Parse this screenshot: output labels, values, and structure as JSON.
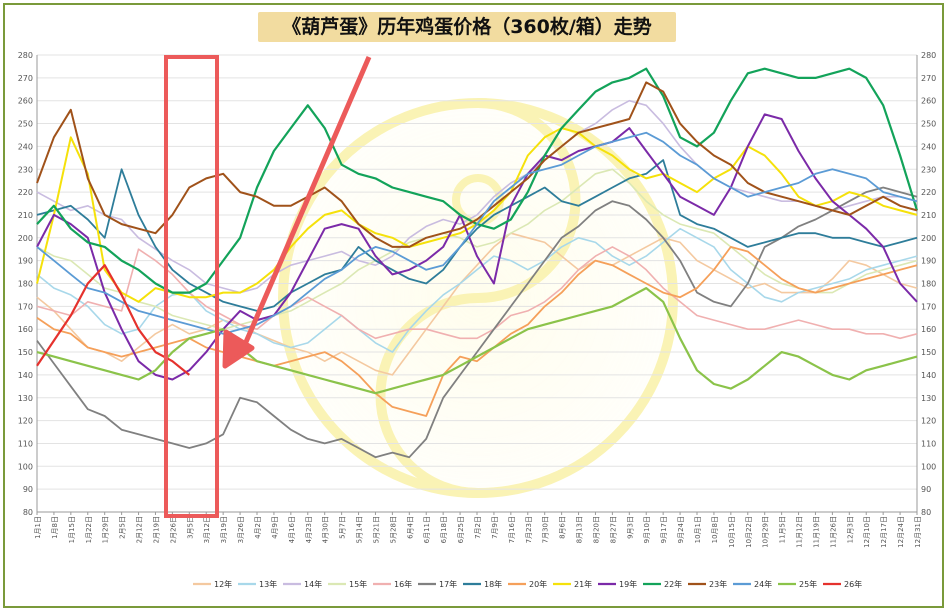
{
  "chart_data": {
    "type": "line",
    "title": "《葫芦蛋》历年鸡蛋价格（360枚/箱）走势",
    "ylim": [
      80,
      280
    ],
    "y_ticks": [
      80,
      90,
      100,
      110,
      120,
      130,
      140,
      150,
      160,
      170,
      180,
      190,
      200,
      210,
      220,
      230,
      240,
      250,
      260,
      270,
      280
    ],
    "x_labels": [
      "1月1日",
      "1月8日",
      "1月15日",
      "1月22日",
      "1月29日",
      "2月5日",
      "2月12日",
      "2月19日",
      "2月26日",
      "3月5日",
      "3月12日",
      "3月19日",
      "3月26日",
      "4月2日",
      "4月9日",
      "4月16日",
      "4月23日",
      "4月30日",
      "5月7日",
      "5月14日",
      "5月21日",
      "5月28日",
      "6月4日",
      "6月11日",
      "6月18日",
      "6月25日",
      "7月2日",
      "7月9日",
      "7月16日",
      "7月23日",
      "7月30日",
      "8月6日",
      "8月13日",
      "8月20日",
      "8月27日",
      "9月3日",
      "9月10日",
      "9月17日",
      "9月24日",
      "10月1日",
      "10月8日",
      "10月15日",
      "10月22日",
      "10月29日",
      "11月5日",
      "11月12日",
      "11月19日",
      "11月26日",
      "12月3日",
      "12月10日",
      "12月17日",
      "12月24日",
      "12月31日"
    ],
    "grid": true,
    "legend_position": "bottom",
    "annotations": [
      "red-box-highlight-late-feb-to-mid-mar",
      "red-arrow-pointing-to-highlight"
    ],
    "series": [
      {
        "name": "12年",
        "color": "#f4c9a0",
        "width": 1.6,
        "values": [
          174,
          168,
          160,
          152,
          150,
          146,
          152,
          158,
          162,
          158,
          160,
          164,
          162,
          158,
          155,
          152,
          150,
          146,
          150,
          146,
          142,
          140,
          150,
          160,
          170,
          180,
          188,
          196,
          202,
          200,
          198,
          192,
          186,
          190,
          188,
          192,
          196,
          200,
          198,
          190,
          186,
          182,
          178,
          180,
          176,
          176,
          176,
          182,
          190,
          188,
          184,
          180,
          178
        ]
      },
      {
        "name": "13年",
        "color": "#a8d8ea",
        "width": 1.6,
        "values": [
          184,
          178,
          175,
          170,
          162,
          158,
          160,
          170,
          175,
          176,
          168,
          164,
          160,
          158,
          154,
          152,
          154,
          160,
          166,
          160,
          154,
          150,
          160,
          168,
          175,
          180,
          186,
          192,
          190,
          186,
          190,
          196,
          200,
          198,
          192,
          188,
          192,
          198,
          204,
          200,
          196,
          186,
          180,
          174,
          172,
          176,
          178,
          180,
          182,
          186,
          188,
          190,
          192
        ]
      },
      {
        "name": "14年",
        "color": "#c9bce0",
        "width": 1.6,
        "values": [
          220,
          216,
          212,
          214,
          210,
          208,
          200,
          195,
          190,
          186,
          180,
          178,
          176,
          178,
          184,
          188,
          190,
          192,
          194,
          190,
          188,
          192,
          200,
          205,
          208,
          206,
          210,
          218,
          224,
          228,
          234,
          240,
          246,
          250,
          256,
          260,
          258,
          250,
          240,
          232,
          226,
          222,
          220,
          218,
          216,
          216,
          214,
          212,
          214,
          216,
          218,
          218,
          216
        ]
      },
      {
        "name": "15年",
        "color": "#dbe8b4",
        "width": 1.6,
        "values": [
          196,
          192,
          190,
          184,
          178,
          176,
          172,
          170,
          166,
          164,
          162,
          160,
          162,
          164,
          166,
          168,
          172,
          176,
          180,
          186,
          190,
          194,
          198,
          200,
          202,
          200,
          196,
          198,
          202,
          206,
          212,
          216,
          222,
          228,
          230,
          224,
          216,
          210,
          206,
          204,
          202,
          196,
          190,
          184,
          180,
          178,
          176,
          176,
          180,
          184,
          186,
          188,
          190
        ]
      },
      {
        "name": "16年",
        "color": "#f0b0b0",
        "width": 1.6,
        "values": [
          170,
          168,
          166,
          172,
          170,
          168,
          195,
          190,
          184,
          176,
          170,
          166,
          162,
          160,
          166,
          170,
          174,
          170,
          166,
          160,
          156,
          158,
          160,
          160,
          158,
          156,
          156,
          160,
          166,
          168,
          172,
          178,
          186,
          192,
          196,
          192,
          186,
          178,
          172,
          166,
          164,
          162,
          160,
          160,
          162,
          164,
          162,
          160,
          160,
          158,
          158,
          156,
          158
        ]
      },
      {
        "name": "17年",
        "color": "#808080",
        "width": 1.8,
        "values": [
          155,
          145,
          135,
          125,
          122,
          116,
          114,
          112,
          110,
          108,
          110,
          114,
          130,
          128,
          122,
          116,
          112,
          110,
          112,
          108,
          104,
          106,
          104,
          112,
          130,
          140,
          150,
          160,
          170,
          180,
          190,
          200,
          205,
          212,
          216,
          214,
          208,
          200,
          190,
          176,
          172,
          170,
          180,
          196,
          200,
          205,
          208,
          212,
          216,
          220,
          222,
          220,
          218
        ]
      },
      {
        "name": "18年",
        "color": "#2e7d9a",
        "width": 1.8,
        "values": [
          210,
          212,
          214,
          208,
          200,
          230,
          210,
          196,
          186,
          180,
          176,
          172,
          170,
          168,
          170,
          176,
          180,
          184,
          186,
          196,
          190,
          186,
          182,
          180,
          186,
          196,
          204,
          210,
          214,
          218,
          222,
          216,
          214,
          218,
          222,
          226,
          228,
          234,
          210,
          206,
          204,
          200,
          196,
          198,
          200,
          202,
          202,
          200,
          200,
          198,
          196,
          198,
          200
        ]
      },
      {
        "name": "20年",
        "color": "#f5a05a",
        "width": 1.8,
        "values": [
          165,
          160,
          158,
          152,
          150,
          148,
          150,
          152,
          154,
          156,
          152,
          150,
          148,
          146,
          144,
          146,
          148,
          150,
          146,
          140,
          132,
          126,
          124,
          122,
          140,
          148,
          146,
          152,
          158,
          162,
          170,
          176,
          184,
          190,
          188,
          184,
          180,
          176,
          174,
          178,
          186,
          196,
          194,
          188,
          182,
          178,
          176,
          178,
          180,
          182,
          184,
          186,
          188
        ]
      },
      {
        "name": "21年",
        "color": "#f5e10a",
        "width": 2.0,
        "values": [
          180,
          210,
          244,
          228,
          186,
          176,
          172,
          178,
          176,
          174,
          174,
          176,
          176,
          180,
          186,
          196,
          204,
          210,
          212,
          206,
          202,
          200,
          196,
          198,
          200,
          202,
          206,
          212,
          220,
          236,
          244,
          248,
          246,
          240,
          236,
          230,
          226,
          228,
          224,
          220,
          226,
          230,
          240,
          236,
          228,
          218,
          214,
          216,
          220,
          218,
          214,
          212,
          210
        ]
      },
      {
        "name": "19年",
        "color": "#7b2aa8",
        "width": 2.0,
        "values": [
          196,
          210,
          206,
          200,
          176,
          160,
          146,
          140,
          138,
          142,
          150,
          160,
          168,
          164,
          166,
          176,
          190,
          204,
          206,
          204,
          192,
          184,
          186,
          190,
          196,
          210,
          192,
          180,
          214,
          228,
          236,
          234,
          238,
          240,
          242,
          248,
          238,
          228,
          218,
          214,
          210,
          222,
          240,
          254,
          252,
          238,
          226,
          216,
          210,
          204,
          196,
          180,
          172
        ]
      },
      {
        "name": "22年",
        "color": "#13a35a",
        "width": 2.2,
        "values": [
          206,
          214,
          204,
          198,
          196,
          190,
          186,
          180,
          176,
          176,
          180,
          190,
          200,
          222,
          238,
          248,
          258,
          248,
          232,
          228,
          226,
          222,
          220,
          218,
          216,
          210,
          206,
          204,
          208,
          220,
          236,
          248,
          256,
          264,
          268,
          270,
          274,
          262,
          244,
          240,
          246,
          260,
          272,
          274,
          272,
          270,
          270,
          272,
          274,
          270,
          258,
          236,
          212
        ]
      },
      {
        "name": "23年",
        "color": "#a0521a",
        "width": 2.0,
        "values": [
          224,
          244,
          256,
          226,
          210,
          206,
          204,
          202,
          210,
          222,
          226,
          228,
          220,
          218,
          214,
          214,
          218,
          222,
          216,
          206,
          200,
          196,
          196,
          200,
          202,
          204,
          208,
          214,
          220,
          226,
          234,
          240,
          246,
          248,
          250,
          252,
          268,
          264,
          250,
          242,
          236,
          232,
          224,
          220,
          218,
          216,
          214,
          212,
          210,
          214,
          218,
          214,
          212
        ]
      },
      {
        "name": "24年",
        "color": "#5b9bd5",
        "width": 1.8,
        "values": [
          196,
          190,
          184,
          178,
          176,
          172,
          168,
          166,
          164,
          162,
          160,
          158,
          160,
          162,
          166,
          170,
          176,
          182,
          186,
          192,
          196,
          194,
          190,
          186,
          188,
          196,
          206,
          216,
          222,
          228,
          230,
          232,
          236,
          240,
          242,
          244,
          246,
          242,
          236,
          232,
          226,
          222,
          218,
          220,
          222,
          224,
          228,
          230,
          228,
          226,
          220,
          218,
          216
        ]
      },
      {
        "name": "25年",
        "color": "#8bc34a",
        "width": 2.2,
        "values": [
          150,
          148,
          146,
          144,
          142,
          140,
          138,
          142,
          150,
          156,
          158,
          160,
          152,
          146,
          144,
          142,
          140,
          138,
          136,
          134,
          132,
          134,
          136,
          138,
          140,
          144,
          148,
          152,
          156,
          160,
          162,
          164,
          166,
          168,
          170,
          174,
          178,
          172,
          156,
          142,
          136,
          134,
          138,
          144,
          150,
          148,
          144,
          140,
          138,
          142,
          144,
          146,
          148
        ]
      },
      {
        "name": "26年",
        "color": "#e5322d",
        "width": 2.2,
        "values": [
          144,
          155,
          166,
          180,
          188,
          175,
          160,
          150,
          146,
          140,
          null,
          null,
          null,
          null,
          null,
          null,
          null,
          null,
          null,
          null,
          null,
          null,
          null,
          null,
          null,
          null,
          null,
          null,
          null,
          null,
          null,
          null,
          null,
          null,
          null,
          null,
          null,
          null,
          null,
          null,
          null,
          null,
          null,
          null,
          null,
          null,
          null,
          null,
          null,
          null,
          null,
          null,
          null
        ]
      }
    ]
  }
}
